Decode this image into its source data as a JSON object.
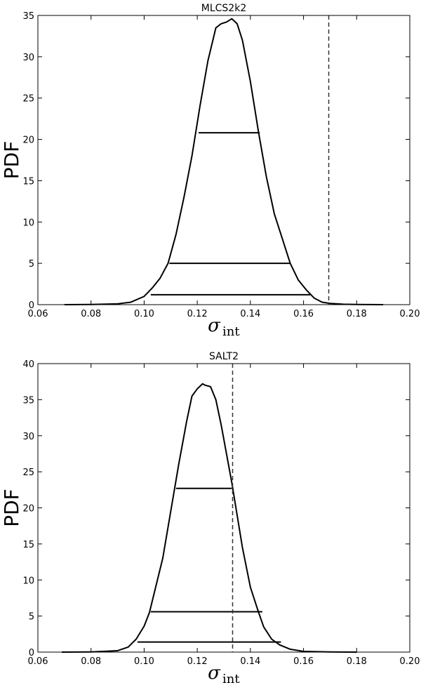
{
  "chart_data": [
    {
      "type": "line",
      "title": "MLCS2k2",
      "ylabel": "PDF",
      "xlabel": "σ",
      "xlabel_sub": "int",
      "xlim": [
        0.06,
        0.2
      ],
      "ylim": [
        0,
        35
      ],
      "xticks": [
        "0.06",
        "0.08",
        "0.10",
        "0.12",
        "0.14",
        "0.16",
        "0.18",
        "0.20"
      ],
      "yticks": [
        "0",
        "5",
        "10",
        "15",
        "20",
        "25",
        "30",
        "35"
      ],
      "grid": false,
      "series": [
        {
          "x": [
            0.07,
            0.08,
            0.09,
            0.095,
            0.1,
            0.103,
            0.106,
            0.109,
            0.112,
            0.115,
            0.118,
            0.121,
            0.124,
            0.127,
            0.129,
            0.131,
            0.133,
            0.135,
            0.137,
            0.14,
            0.143,
            0.146,
            0.149,
            0.152,
            0.155,
            0.158,
            0.161,
            0.164,
            0.167,
            0.17,
            0.175,
            0.18,
            0.19
          ],
          "y": [
            0.0,
            0.02,
            0.1,
            0.3,
            1.0,
            2.0,
            3.2,
            5.0,
            8.5,
            13.0,
            18.0,
            24.0,
            29.5,
            33.5,
            34.0,
            34.2,
            34.6,
            34.0,
            32.0,
            27.0,
            21.0,
            15.5,
            11.0,
            8.0,
            5.0,
            3.0,
            1.8,
            0.8,
            0.3,
            0.15,
            0.05,
            0.02,
            0.0
          ]
        }
      ],
      "levels": [
        {
          "y": 20.8,
          "x0": 0.1205,
          "x1": 0.1435
        },
        {
          "y": 5.0,
          "x0": 0.1095,
          "x1": 0.155
        },
        {
          "y": 1.2,
          "x0": 0.1025,
          "x1": 0.1625
        }
      ],
      "vline": {
        "x": 0.1695,
        "style": "dashed"
      }
    },
    {
      "type": "line",
      "title": "SALT2",
      "ylabel": "PDF",
      "xlabel": "σ",
      "xlabel_sub": "int",
      "xlim": [
        0.06,
        0.2
      ],
      "ylim": [
        0,
        40
      ],
      "xticks": [
        "0.06",
        "0.08",
        "0.10",
        "0.12",
        "0.14",
        "0.16",
        "0.18",
        "0.20"
      ],
      "yticks": [
        "0",
        "5",
        "10",
        "15",
        "20",
        "25",
        "30",
        "35",
        "40"
      ],
      "grid": false,
      "series": [
        {
          "x": [
            0.069,
            0.08,
            0.09,
            0.094,
            0.097,
            0.1,
            0.102,
            0.104,
            0.107,
            0.11,
            0.113,
            0.116,
            0.118,
            0.12,
            0.122,
            0.123,
            0.125,
            0.127,
            0.129,
            0.131,
            0.133,
            0.135,
            0.137,
            0.14,
            0.143,
            0.145,
            0.148,
            0.151,
            0.155,
            0.16,
            0.17,
            0.18
          ],
          "y": [
            0.0,
            0.02,
            0.2,
            0.7,
            1.8,
            3.6,
            5.5,
            8.5,
            13.0,
            19.5,
            26.0,
            32.0,
            35.5,
            36.5,
            37.2,
            37.0,
            36.8,
            35.0,
            31.5,
            27.5,
            23.5,
            19.0,
            14.5,
            9.0,
            5.6,
            3.5,
            1.8,
            1.0,
            0.4,
            0.1,
            0.02,
            0.0
          ]
        }
      ],
      "levels": [
        {
          "y": 22.7,
          "x0": 0.112,
          "x1": 0.133
        },
        {
          "y": 5.6,
          "x0": 0.1025,
          "x1": 0.1445
        },
        {
          "y": 1.4,
          "x0": 0.0975,
          "x1": 0.1515
        }
      ],
      "vline": {
        "x": 0.1333,
        "style": "dashed"
      }
    }
  ]
}
